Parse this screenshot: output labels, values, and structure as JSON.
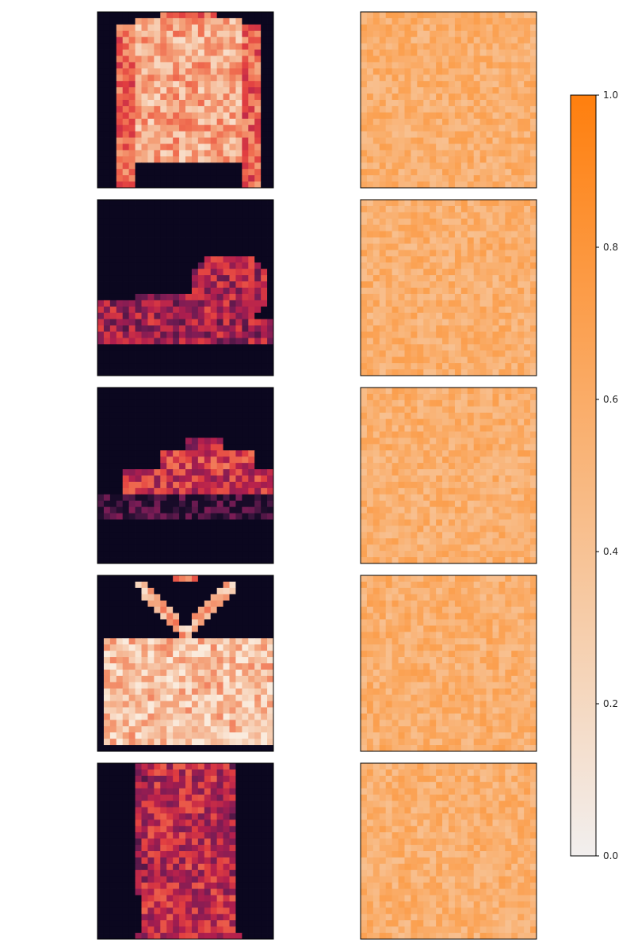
{
  "chart_data": {
    "type": "heatmap",
    "title": "",
    "layout": "5 rows x 2 columns of 28x28 pixel images with a shared colorbar",
    "grid_size": [
      28,
      28
    ],
    "axes_ticks": false,
    "rows": [
      {
        "input_image": "long-sleeve top (fashion item)",
        "explanation_map": "near-uniform orange noise, mostly between 0.45 and 0.70"
      },
      {
        "input_image": "sandal (fashion item)",
        "explanation_map": "near-uniform orange noise, mostly between 0.45 and 0.70"
      },
      {
        "input_image": "sneaker (fashion item)",
        "explanation_map": "near-uniform orange noise, mostly between 0.45 and 0.70"
      },
      {
        "input_image": "handbag (fashion item)",
        "explanation_map": "near-uniform orange noise, mostly between 0.45 and 0.70"
      },
      {
        "input_image": "dress (fashion item)",
        "explanation_map": "near-uniform orange noise, mostly between 0.45 and 0.70"
      }
    ],
    "colormaps": {
      "input_images": "rocket (dark purple to peach)",
      "explanation_maps": "light grey to orange"
    },
    "colorbar": {
      "min": 0.0,
      "max": 1.0,
      "ticks": [
        "0.0",
        "0.2",
        "0.4",
        "0.6",
        "0.8",
        "1.0"
      ],
      "placement": "right",
      "color_low": "#f2efee",
      "color_high": "#ff7f0e"
    }
  }
}
